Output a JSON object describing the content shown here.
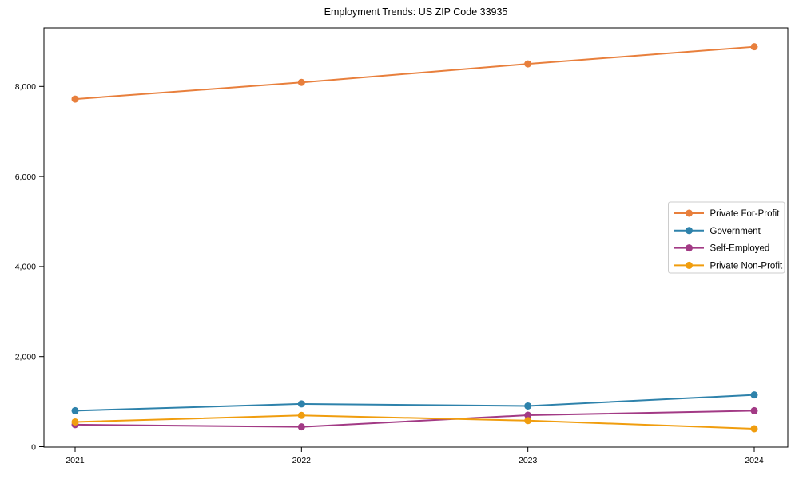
{
  "figure": {
    "background": "#ffffff",
    "axis_color": "#000000",
    "tick_label_color": "#000000"
  },
  "chart_data": {
    "type": "line",
    "title": "Employment Trends: US ZIP Code 33935",
    "xlabel": "",
    "ylabel": "",
    "categories": [
      "2021",
      "2022",
      "2023",
      "2024"
    ],
    "series": [
      {
        "name": "Private For-Profit",
        "color": "#e87f3c",
        "values": [
          7720,
          8090,
          8500,
          8880
        ]
      },
      {
        "name": "Government",
        "color": "#2e82ab",
        "values": [
          800,
          950,
          905,
          1150
        ]
      },
      {
        "name": "Self-Employed",
        "color": "#a23a85",
        "values": [
          490,
          440,
          700,
          800
        ]
      },
      {
        "name": "Private Non-Profit",
        "color": "#f09d0e",
        "values": [
          550,
          695,
          580,
          400
        ]
      }
    ],
    "ylim": [
      0,
      9300
    ],
    "yticks": [
      0,
      2000,
      4000,
      6000,
      8000
    ],
    "ytick_labels": [
      "0",
      "2,000",
      "4,000",
      "6,000",
      "8,000"
    ],
    "grid": false,
    "legend_position": "center-right",
    "legend_border_color": "#cccccc",
    "marker": "circle",
    "marker_radius": 4.5,
    "line_width": 2
  }
}
